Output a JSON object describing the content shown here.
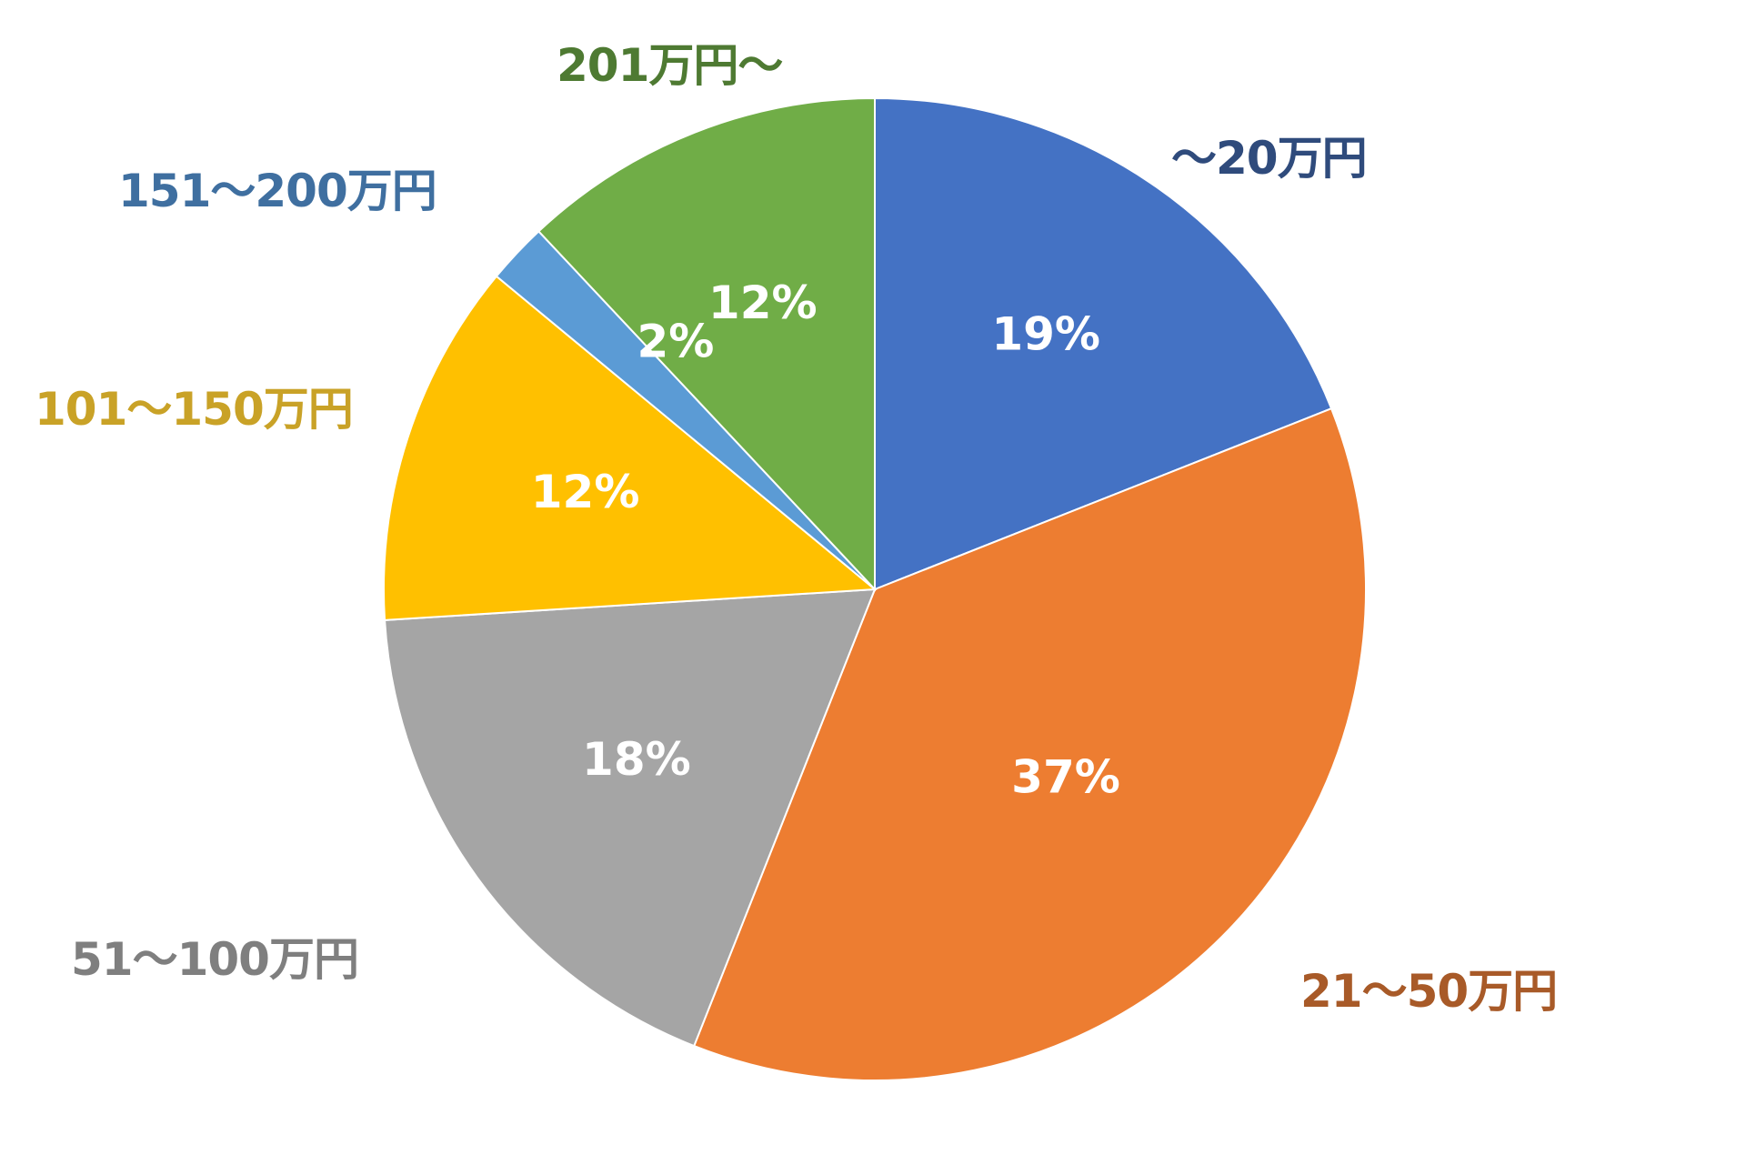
{
  "chart_data": {
    "type": "pie",
    "title": "",
    "start_angle_deg": 0,
    "direction": "clockwise",
    "center": [
      962,
      648
    ],
    "radius": 540,
    "categories": [
      "～20万円",
      "21～50万円",
      "51～100万円",
      "101～150万円",
      "151～200万円",
      "201万円～"
    ],
    "values": [
      19,
      37,
      18,
      12,
      2,
      12
    ],
    "value_labels": [
      "19%",
      "37%",
      "18%",
      "12%",
      "2%",
      "12%"
    ],
    "colors": [
      "#4472C4",
      "#ED7D31",
      "#A5A5A5",
      "#FFC000",
      "#5B9BD5",
      "#70AD47"
    ],
    "label_colors": [
      "#2F4B7C",
      "#A85A28",
      "#7F7F7F",
      "#C9A227",
      "#3F6FA0",
      "#4E7A32"
    ],
    "legend": "none (category labels placed outside slices)"
  },
  "slices": [
    {
      "category": "～20万円",
      "pct": "19%"
    },
    {
      "category": "21～50万円",
      "pct": "37%"
    },
    {
      "category": "51～100万円",
      "pct": "18%"
    },
    {
      "category": "101～150万円",
      "pct": "12%"
    },
    {
      "category": "151～200万円",
      "pct": "2%"
    },
    {
      "category": "201万円～",
      "pct": "12%"
    }
  ]
}
